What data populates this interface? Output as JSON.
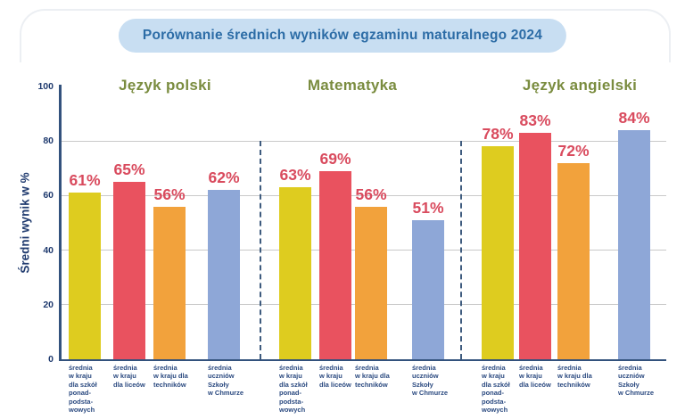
{
  "title_bar": {
    "title": "Porównanie średnich wyników egzaminu maturalnego 2024"
  },
  "chart_data": {
    "type": "bar",
    "title": "Porównanie średnich wyników egzaminu maturalnego 2024",
    "ylabel": "Średni wynik w %",
    "ylim": [
      0,
      100
    ],
    "yticks": [
      0,
      20,
      40,
      60,
      80,
      100
    ],
    "grid": true,
    "legend_position": "none",
    "groups": [
      {
        "label": "Język polski",
        "values": [
          61,
          65,
          56,
          62
        ]
      },
      {
        "label": "Matematyka",
        "values": [
          63,
          69,
          56,
          51
        ]
      },
      {
        "label": "Język angielski",
        "values": [
          78,
          83,
          72,
          84
        ]
      }
    ],
    "categories": [
      "średnia w kraju dla szkół ponadpodstawowych",
      "średnia w kraju dla liceów",
      "średnia w kraju dla techników",
      "średnia uczniów Szkoły w Chmurze"
    ],
    "category_display_lines": [
      [
        "średnia",
        "w kraju",
        "dla szkół",
        "ponad-",
        "podsta-",
        "wowych"
      ],
      [
        "średnia",
        "w kraju",
        "dla liceów"
      ],
      [
        "średnia",
        "w kraju dla",
        "techników"
      ],
      [
        "średnia",
        "uczniów",
        "Szkoły",
        "w Chmurze"
      ]
    ],
    "value_suffix": "%",
    "colors": {
      "series": [
        "#DECC1F",
        "#E9525F",
        "#F2A23C",
        "#8EA7D7"
      ],
      "value_label": "#D94B5E",
      "group_header": "#7A8C3F",
      "axis": "#33527D",
      "tick_label": "#1F3A6E",
      "grid_line": "#C9C9C9",
      "separator": "#3E5B7E",
      "title_text": "#2C6CA6",
      "title_bg": "#C8DEF2",
      "category_label": "#2B4A80"
    }
  }
}
